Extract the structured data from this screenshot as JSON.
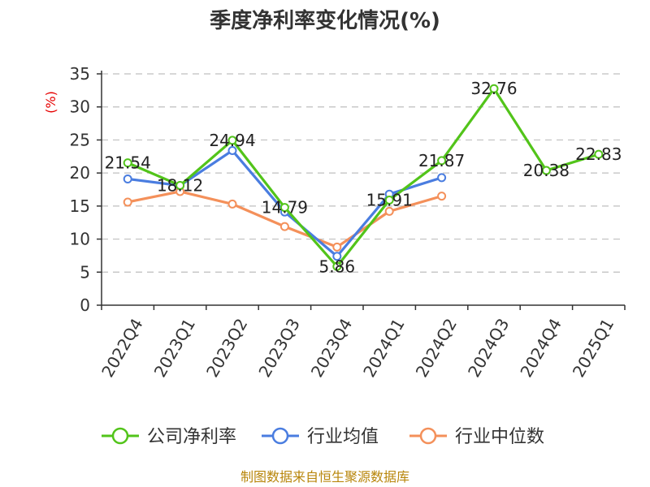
{
  "chart_data": {
    "type": "line",
    "title": "季度净利率变化情况(%)",
    "ylabel": "(%)",
    "xlabel": "",
    "ylim": [
      0,
      35
    ],
    "yticks": [
      0,
      5,
      10,
      15,
      20,
      25,
      30,
      35
    ],
    "grid": true,
    "legend_position": "bottom",
    "categories": [
      "2022Q4",
      "2023Q1",
      "2023Q2",
      "2023Q3",
      "2023Q4",
      "2024Q1",
      "2024Q2",
      "2024Q3",
      "2024Q4",
      "2025Q1"
    ],
    "series": [
      {
        "name": "公司净利率",
        "color": "#52c41a",
        "values": [
          21.54,
          18.12,
          24.94,
          14.79,
          5.86,
          15.91,
          21.87,
          32.76,
          20.38,
          22.83
        ],
        "labels": [
          "21.54",
          "18.12",
          "24.94",
          "14.79",
          "5.86",
          "15.91",
          "21.87",
          "32.76",
          "20.38",
          "22.83"
        ]
      },
      {
        "name": "行业均值",
        "color": "#4a7de0",
        "values": [
          19.1,
          18.1,
          23.4,
          14.1,
          7.4,
          16.8,
          19.3,
          null,
          null,
          null
        ]
      },
      {
        "name": "行业中位数",
        "color": "#f4905a",
        "values": [
          15.6,
          17.2,
          15.3,
          11.9,
          8.8,
          14.2,
          16.5,
          null,
          null,
          null
        ]
      }
    ]
  },
  "source": "制图数据来自恒生聚源数据库"
}
